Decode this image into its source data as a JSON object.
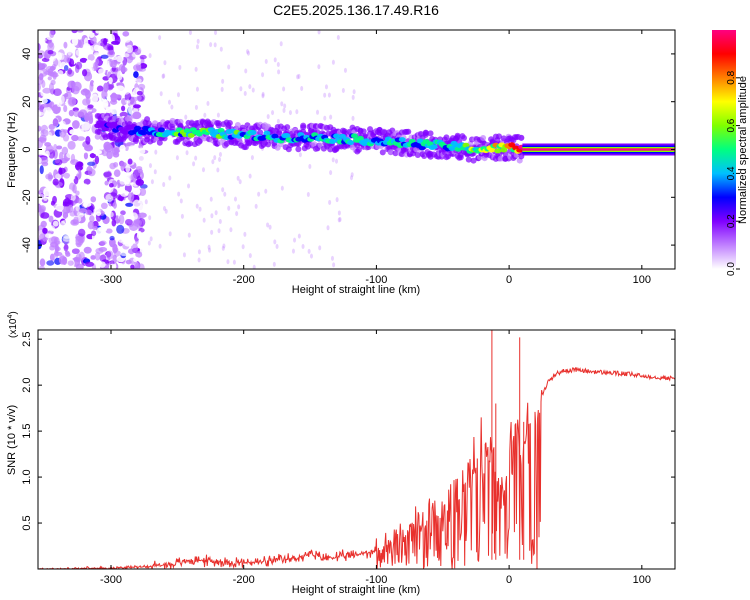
{
  "chart_data": [
    {
      "type": "heatmap",
      "title": "C2E5.2025.136.17.49.R16",
      "xlabel": "Height of straight line (km)",
      "ylabel": "Frequency (Hz)",
      "xlim": [
        -355,
        125
      ],
      "ylim": [
        -50,
        50
      ],
      "xticks": [
        -300,
        -200,
        -100,
        0,
        100
      ],
      "yticks": [
        -40,
        -20,
        0,
        20,
        40
      ],
      "colorbar": {
        "label": "Normalized spectral amplitude",
        "range": [
          0,
          1
        ],
        "ticks": [
          "0.0",
          "0.2",
          "0.4",
          "0.6",
          "0.8"
        ],
        "colors": [
          "#ffffff",
          "#c080ff",
          "#8000ff",
          "#0000ff",
          "#00c0ff",
          "#00ff80",
          "#80ff00",
          "#ffff00",
          "#ff8000",
          "#ff0000",
          "#ff0080"
        ]
      },
      "ridge": [
        {
          "x": -310,
          "f": 10,
          "amp": 0.25
        },
        {
          "x": -280,
          "f": 8,
          "amp": 0.35
        },
        {
          "x": -250,
          "f": 7,
          "amp": 0.55
        },
        {
          "x": -230,
          "f": 7,
          "amp": 0.6
        },
        {
          "x": -200,
          "f": 6,
          "amp": 0.5
        },
        {
          "x": -170,
          "f": 5,
          "amp": 0.45
        },
        {
          "x": -140,
          "f": 5,
          "amp": 0.45
        },
        {
          "x": -110,
          "f": 4,
          "amp": 0.5
        },
        {
          "x": -90,
          "f": 3,
          "amp": 0.45
        },
        {
          "x": -60,
          "f": 2,
          "amp": 0.5
        },
        {
          "x": -40,
          "f": 1,
          "amp": 0.5
        },
        {
          "x": -20,
          "f": 0,
          "amp": 0.7
        },
        {
          "x": 0,
          "f": 1,
          "amp": 0.8
        },
        {
          "x": 10,
          "f": 0,
          "amp": 0.95
        },
        {
          "x": 125,
          "f": 0,
          "amp": 0.95
        }
      ],
      "noise_region": [
        -355,
        -275
      ]
    },
    {
      "type": "line",
      "xlabel": "Height of straight line (km)",
      "ylabel": "SNR (10 * v/v)",
      "multiplier": "(x10",
      "multiplier_exp": "4",
      "xlim": [
        -355,
        125
      ],
      "ylim": [
        0,
        2.6
      ],
      "xticks": [
        -300,
        -200,
        -100,
        0,
        100
      ],
      "yticks": [
        "0.5",
        "1.0",
        "1.5",
        "2.0",
        "2.5"
      ],
      "color": "#e8302c",
      "series": [
        {
          "x": [
            -355,
            -300,
            -270,
            -250,
            -240,
            -220,
            -200,
            -180,
            -160,
            -150,
            -140,
            -120,
            -100,
            -90,
            -80,
            -70,
            -60,
            -50,
            -40,
            -30,
            -25,
            -20,
            -15,
            -12,
            -10,
            -8,
            -5,
            0,
            5,
            10,
            15,
            20,
            25,
            30,
            35,
            40,
            50,
            60,
            70,
            80,
            90,
            100,
            110,
            125
          ],
          "y": [
            0.0,
            0.01,
            0.03,
            0.06,
            0.1,
            0.08,
            0.07,
            0.08,
            0.12,
            0.16,
            0.12,
            0.14,
            0.2,
            0.28,
            0.36,
            0.44,
            0.52,
            0.64,
            0.8,
            0.95,
            1.1,
            1.3,
            1.4,
            1.2,
            1.0,
            0.9,
            0.85,
            1.2,
            1.5,
            1.2,
            1.6,
            1.75,
            1.9,
            2.05,
            2.12,
            2.15,
            2.17,
            2.15,
            2.14,
            2.13,
            2.12,
            2.1,
            2.09,
            2.07
          ]
        }
      ],
      "spikes": [
        {
          "x": -13,
          "y": 2.6
        },
        {
          "x": -10,
          "y": 1.8
        },
        {
          "x": 8,
          "y": 2.52
        },
        {
          "x": 11,
          "y": 1.6
        }
      ]
    }
  ]
}
